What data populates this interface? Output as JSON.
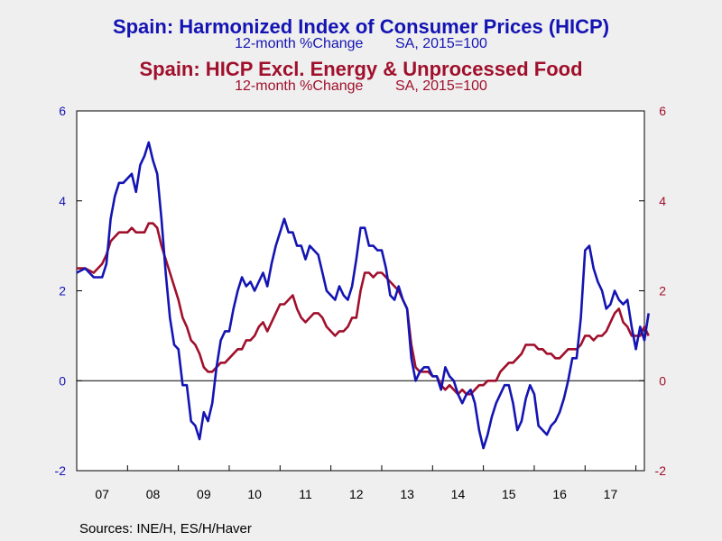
{
  "header": {
    "title1": "Spain: Harmonized Index of Consumer Prices (HICP)",
    "subtitle1": "12-month %Change        SA, 2015=100",
    "title2": "Spain: HICP Excl. Energy & Unprocessed Food",
    "subtitle2": "12-month %Change        SA, 2015=100"
  },
  "footer": {
    "source": "Sources:  INE/H, ES/H/Haver"
  },
  "colors": {
    "hicp": "#1414b4",
    "core": "#a0102c",
    "background": "#efefef",
    "plot": "#ffffff"
  },
  "chart_data": {
    "type": "line",
    "x_tick_labels": [
      "07",
      "08",
      "09",
      "10",
      "11",
      "12",
      "13",
      "14",
      "15",
      "16",
      "17"
    ],
    "y_left": {
      "ticks": [
        "-2",
        "0",
        "2",
        "4",
        "6"
      ],
      "range": [
        -2,
        6
      ],
      "color": "#1414b4"
    },
    "y_right": {
      "ticks": [
        "-2",
        "0",
        "2",
        "4",
        "6"
      ],
      "range": [
        -2,
        6
      ],
      "color": "#a0102c"
    },
    "x_range": [
      "2007-01",
      "2018-03"
    ],
    "zero_line": true,
    "series": [
      {
        "axis": "left",
        "color": "#1414b4",
        "points": [
          [
            "2007-01",
            2.4
          ],
          [
            "2007-03",
            2.5
          ],
          [
            "2007-05",
            2.3
          ],
          [
            "2007-07",
            2.3
          ],
          [
            "2007-08",
            2.6
          ],
          [
            "2007-09",
            3.6
          ],
          [
            "2007-10",
            4.1
          ],
          [
            "2007-11",
            4.4
          ],
          [
            "2007-12",
            4.4
          ],
          [
            "2008-01",
            4.5
          ],
          [
            "2008-02",
            4.6
          ],
          [
            "2008-03",
            4.2
          ],
          [
            "2008-04",
            4.8
          ],
          [
            "2008-05",
            5.0
          ],
          [
            "2008-06",
            5.3
          ],
          [
            "2008-07",
            4.9
          ],
          [
            "2008-08",
            4.6
          ],
          [
            "2008-09",
            3.6
          ],
          [
            "2008-10",
            2.4
          ],
          [
            "2008-11",
            1.4
          ],
          [
            "2008-12",
            0.8
          ],
          [
            "2009-01",
            0.7
          ],
          [
            "2009-02",
            -0.1
          ],
          [
            "2009-03",
            -0.1
          ],
          [
            "2009-04",
            -0.9
          ],
          [
            "2009-05",
            -1.0
          ],
          [
            "2009-06",
            -1.3
          ],
          [
            "2009-07",
            -0.7
          ],
          [
            "2009-08",
            -0.9
          ],
          [
            "2009-09",
            -0.5
          ],
          [
            "2009-10",
            0.3
          ],
          [
            "2009-11",
            0.9
          ],
          [
            "2009-12",
            1.1
          ],
          [
            "2010-01",
            1.1
          ],
          [
            "2010-02",
            1.6
          ],
          [
            "2010-03",
            2.0
          ],
          [
            "2010-04",
            2.3
          ],
          [
            "2010-05",
            2.1
          ],
          [
            "2010-06",
            2.2
          ],
          [
            "2010-07",
            2.0
          ],
          [
            "2010-08",
            2.2
          ],
          [
            "2010-09",
            2.4
          ],
          [
            "2010-10",
            2.1
          ],
          [
            "2010-11",
            2.6
          ],
          [
            "2010-12",
            3.0
          ],
          [
            "2011-01",
            3.3
          ],
          [
            "2011-02",
            3.6
          ],
          [
            "2011-03",
            3.3
          ],
          [
            "2011-04",
            3.3
          ],
          [
            "2011-05",
            3.0
          ],
          [
            "2011-06",
            3.0
          ],
          [
            "2011-07",
            2.7
          ],
          [
            "2011-08",
            3.0
          ],
          [
            "2011-09",
            2.9
          ],
          [
            "2011-10",
            2.8
          ],
          [
            "2011-11",
            2.4
          ],
          [
            "2011-12",
            2.0
          ],
          [
            "2012-01",
            1.9
          ],
          [
            "2012-02",
            1.8
          ],
          [
            "2012-03",
            2.1
          ],
          [
            "2012-04",
            1.9
          ],
          [
            "2012-05",
            1.8
          ],
          [
            "2012-06",
            2.1
          ],
          [
            "2012-07",
            2.7
          ],
          [
            "2012-08",
            3.4
          ],
          [
            "2012-09",
            3.4
          ],
          [
            "2012-10",
            3.0
          ],
          [
            "2012-11",
            3.0
          ],
          [
            "2012-12",
            2.9
          ],
          [
            "2013-01",
            2.9
          ],
          [
            "2013-02",
            2.5
          ],
          [
            "2013-03",
            1.9
          ],
          [
            "2013-04",
            1.8
          ],
          [
            "2013-05",
            2.1
          ],
          [
            "2013-06",
            1.8
          ],
          [
            "2013-07",
            1.6
          ],
          [
            "2013-08",
            0.5
          ],
          [
            "2013-09",
            0.0
          ],
          [
            "2013-10",
            0.2
          ],
          [
            "2013-11",
            0.3
          ],
          [
            "2013-12",
            0.3
          ],
          [
            "2014-01",
            0.1
          ],
          [
            "2014-02",
            0.1
          ],
          [
            "2014-03",
            -0.2
          ],
          [
            "2014-04",
            0.3
          ],
          [
            "2014-05",
            0.1
          ],
          [
            "2014-06",
            0.0
          ],
          [
            "2014-07",
            -0.3
          ],
          [
            "2014-08",
            -0.5
          ],
          [
            "2014-09",
            -0.3
          ],
          [
            "2014-10",
            -0.2
          ],
          [
            "2014-11",
            -0.5
          ],
          [
            "2014-12",
            -1.1
          ],
          [
            "2015-01",
            -1.5
          ],
          [
            "2015-02",
            -1.2
          ],
          [
            "2015-03",
            -0.8
          ],
          [
            "2015-04",
            -0.5
          ],
          [
            "2015-05",
            -0.3
          ],
          [
            "2015-06",
            -0.1
          ],
          [
            "2015-07",
            -0.1
          ],
          [
            "2015-08",
            -0.5
          ],
          [
            "2015-09",
            -1.1
          ],
          [
            "2015-10",
            -0.9
          ],
          [
            "2015-11",
            -0.4
          ],
          [
            "2015-12",
            -0.1
          ],
          [
            "2016-01",
            -0.3
          ],
          [
            "2016-02",
            -1.0
          ],
          [
            "2016-03",
            -1.1
          ],
          [
            "2016-04",
            -1.2
          ],
          [
            "2016-05",
            -1.0
          ],
          [
            "2016-06",
            -0.9
          ],
          [
            "2016-07",
            -0.7
          ],
          [
            "2016-08",
            -0.4
          ],
          [
            "2016-09",
            0.0
          ],
          [
            "2016-10",
            0.5
          ],
          [
            "2016-11",
            0.5
          ],
          [
            "2016-12",
            1.4
          ],
          [
            "2017-01",
            2.9
          ],
          [
            "2017-02",
            3.0
          ],
          [
            "2017-03",
            2.5
          ],
          [
            "2017-04",
            2.2
          ],
          [
            "2017-05",
            2.0
          ],
          [
            "2017-06",
            1.6
          ],
          [
            "2017-07",
            1.7
          ],
          [
            "2017-08",
            2.0
          ],
          [
            "2017-09",
            1.8
          ],
          [
            "2017-10",
            1.7
          ],
          [
            "2017-11",
            1.8
          ],
          [
            "2017-12",
            1.2
          ],
          [
            "2018-01",
            0.7
          ],
          [
            "2018-02",
            1.2
          ],
          [
            "2018-03",
            0.9
          ],
          [
            "2018-04",
            1.5
          ]
        ]
      },
      {
        "axis": "right",
        "color": "#a0102c",
        "points": [
          [
            "2007-01",
            2.5
          ],
          [
            "2007-03",
            2.5
          ],
          [
            "2007-05",
            2.4
          ],
          [
            "2007-07",
            2.6
          ],
          [
            "2007-08",
            2.8
          ],
          [
            "2007-09",
            3.1
          ],
          [
            "2007-10",
            3.2
          ],
          [
            "2007-11",
            3.3
          ],
          [
            "2007-12",
            3.3
          ],
          [
            "2008-01",
            3.3
          ],
          [
            "2008-02",
            3.4
          ],
          [
            "2008-03",
            3.3
          ],
          [
            "2008-04",
            3.3
          ],
          [
            "2008-05",
            3.3
          ],
          [
            "2008-06",
            3.5
          ],
          [
            "2008-07",
            3.5
          ],
          [
            "2008-08",
            3.4
          ],
          [
            "2008-09",
            3.0
          ],
          [
            "2008-10",
            2.7
          ],
          [
            "2008-11",
            2.4
          ],
          [
            "2008-12",
            2.1
          ],
          [
            "2009-01",
            1.8
          ],
          [
            "2009-02",
            1.4
          ],
          [
            "2009-03",
            1.2
          ],
          [
            "2009-04",
            0.9
          ],
          [
            "2009-05",
            0.8
          ],
          [
            "2009-06",
            0.6
          ],
          [
            "2009-07",
            0.3
          ],
          [
            "2009-08",
            0.2
          ],
          [
            "2009-09",
            0.2
          ],
          [
            "2009-10",
            0.3
          ],
          [
            "2009-11",
            0.4
          ],
          [
            "2009-12",
            0.4
          ],
          [
            "2010-01",
            0.5
          ],
          [
            "2010-02",
            0.6
          ],
          [
            "2010-03",
            0.7
          ],
          [
            "2010-04",
            0.7
          ],
          [
            "2010-05",
            0.9
          ],
          [
            "2010-06",
            0.9
          ],
          [
            "2010-07",
            1.0
          ],
          [
            "2010-08",
            1.2
          ],
          [
            "2010-09",
            1.3
          ],
          [
            "2010-10",
            1.1
          ],
          [
            "2010-11",
            1.3
          ],
          [
            "2010-12",
            1.5
          ],
          [
            "2011-01",
            1.7
          ],
          [
            "2011-02",
            1.7
          ],
          [
            "2011-03",
            1.8
          ],
          [
            "2011-04",
            1.9
          ],
          [
            "2011-05",
            1.6
          ],
          [
            "2011-06",
            1.4
          ],
          [
            "2011-07",
            1.3
          ],
          [
            "2011-08",
            1.4
          ],
          [
            "2011-09",
            1.5
          ],
          [
            "2011-10",
            1.5
          ],
          [
            "2011-11",
            1.4
          ],
          [
            "2011-12",
            1.2
          ],
          [
            "2012-01",
            1.1
          ],
          [
            "2012-02",
            1.0
          ],
          [
            "2012-03",
            1.1
          ],
          [
            "2012-04",
            1.1
          ],
          [
            "2012-05",
            1.2
          ],
          [
            "2012-06",
            1.4
          ],
          [
            "2012-07",
            1.4
          ],
          [
            "2012-08",
            2.0
          ],
          [
            "2012-09",
            2.4
          ],
          [
            "2012-10",
            2.4
          ],
          [
            "2012-11",
            2.3
          ],
          [
            "2012-12",
            2.4
          ],
          [
            "2013-01",
            2.4
          ],
          [
            "2013-02",
            2.3
          ],
          [
            "2013-03",
            2.2
          ],
          [
            "2013-04",
            2.1
          ],
          [
            "2013-05",
            2.0
          ],
          [
            "2013-06",
            1.8
          ],
          [
            "2013-07",
            1.6
          ],
          [
            "2013-08",
            0.8
          ],
          [
            "2013-09",
            0.3
          ],
          [
            "2013-10",
            0.2
          ],
          [
            "2013-11",
            0.2
          ],
          [
            "2013-12",
            0.2
          ],
          [
            "2014-01",
            0.1
          ],
          [
            "2014-02",
            0.1
          ],
          [
            "2014-03",
            -0.1
          ],
          [
            "2014-04",
            -0.2
          ],
          [
            "2014-05",
            -0.1
          ],
          [
            "2014-06",
            -0.2
          ],
          [
            "2014-07",
            -0.3
          ],
          [
            "2014-08",
            -0.2
          ],
          [
            "2014-09",
            -0.3
          ],
          [
            "2014-10",
            -0.3
          ],
          [
            "2014-11",
            -0.2
          ],
          [
            "2014-12",
            -0.1
          ],
          [
            "2015-01",
            -0.1
          ],
          [
            "2015-02",
            0.0
          ],
          [
            "2015-03",
            0.0
          ],
          [
            "2015-04",
            0.0
          ],
          [
            "2015-05",
            0.2
          ],
          [
            "2015-06",
            0.3
          ],
          [
            "2015-07",
            0.4
          ],
          [
            "2015-08",
            0.4
          ],
          [
            "2015-09",
            0.5
          ],
          [
            "2015-10",
            0.6
          ],
          [
            "2015-11",
            0.8
          ],
          [
            "2015-12",
            0.8
          ],
          [
            "2016-01",
            0.8
          ],
          [
            "2016-02",
            0.7
          ],
          [
            "2016-03",
            0.7
          ],
          [
            "2016-04",
            0.6
          ],
          [
            "2016-05",
            0.6
          ],
          [
            "2016-06",
            0.5
          ],
          [
            "2016-07",
            0.5
          ],
          [
            "2016-08",
            0.6
          ],
          [
            "2016-09",
            0.7
          ],
          [
            "2016-10",
            0.7
          ],
          [
            "2016-11",
            0.7
          ],
          [
            "2016-12",
            0.8
          ],
          [
            "2017-01",
            1.0
          ],
          [
            "2017-02",
            1.0
          ],
          [
            "2017-03",
            0.9
          ],
          [
            "2017-04",
            1.0
          ],
          [
            "2017-05",
            1.0
          ],
          [
            "2017-06",
            1.1
          ],
          [
            "2017-07",
            1.3
          ],
          [
            "2017-08",
            1.5
          ],
          [
            "2017-09",
            1.6
          ],
          [
            "2017-10",
            1.3
          ],
          [
            "2017-11",
            1.2
          ],
          [
            "2017-12",
            1.0
          ],
          [
            "2018-01",
            1.0
          ],
          [
            "2018-02",
            1.0
          ],
          [
            "2018-03",
            1.2
          ],
          [
            "2018-04",
            1.0
          ]
        ]
      }
    ]
  }
}
